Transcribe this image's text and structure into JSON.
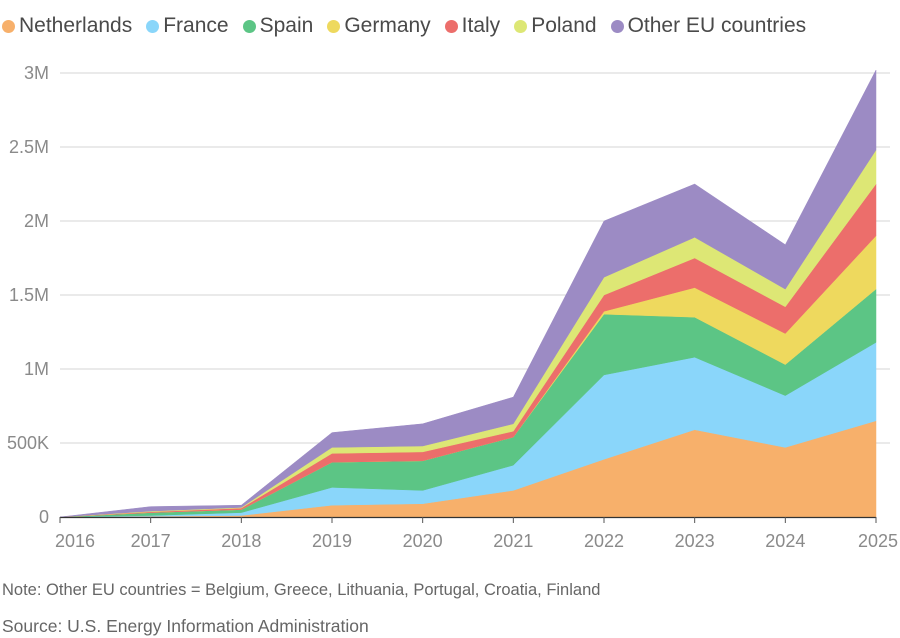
{
  "chart_data": {
    "type": "area",
    "stacked": true,
    "title": "",
    "xlabel": "",
    "ylabel": "",
    "ylim": [
      0,
      3000000
    ],
    "grid": true,
    "x": [
      "2016",
      "2017",
      "2018",
      "2019",
      "2020",
      "2021",
      "2022",
      "2023",
      "2024",
      "2025"
    ],
    "yticks": [
      {
        "value": 0,
        "label": "0"
      },
      {
        "value": 500000,
        "label": "500K"
      },
      {
        "value": 1000000,
        "label": "1M"
      },
      {
        "value": 1500000,
        "label": "1.5M"
      },
      {
        "value": 2000000,
        "label": "2M"
      },
      {
        "value": 2500000,
        "label": "2.5M"
      },
      {
        "value": 3000000,
        "label": "3M"
      }
    ],
    "series": [
      {
        "name": "Netherlands",
        "color": "#F7B06B",
        "values": [
          0,
          5000,
          10000,
          80000,
          90000,
          180000,
          390000,
          590000,
          470000,
          650000
        ]
      },
      {
        "name": "France",
        "color": "#8AD6FA",
        "values": [
          0,
          5000,
          20000,
          120000,
          90000,
          170000,
          570000,
          490000,
          350000,
          530000
        ]
      },
      {
        "name": "Spain",
        "color": "#5CC585",
        "values": [
          0,
          20000,
          20000,
          170000,
          200000,
          190000,
          410000,
          270000,
          210000,
          360000
        ]
      },
      {
        "name": "Germany",
        "color": "#EED95E",
        "values": [
          0,
          0,
          0,
          0,
          0,
          0,
          20000,
          200000,
          210000,
          360000
        ]
      },
      {
        "name": "Italy",
        "color": "#EC6E6B",
        "values": [
          0,
          5000,
          10000,
          60000,
          60000,
          40000,
          110000,
          200000,
          180000,
          350000
        ]
      },
      {
        "name": "Poland",
        "color": "#DDE775",
        "values": [
          0,
          5000,
          5000,
          40000,
          40000,
          50000,
          120000,
          140000,
          120000,
          230000
        ]
      },
      {
        "name": "Other EU countries",
        "color": "#9C8BC4",
        "values": [
          0,
          30000,
          15000,
          100000,
          150000,
          180000,
          380000,
          360000,
          300000,
          540000
        ]
      }
    ],
    "legend_position": "top"
  },
  "note": "Note: Other EU countries = Belgium, Greece, Lithuania, Portugal, Croatia, Finland",
  "source": "Source: U.S. Energy Information Administration"
}
